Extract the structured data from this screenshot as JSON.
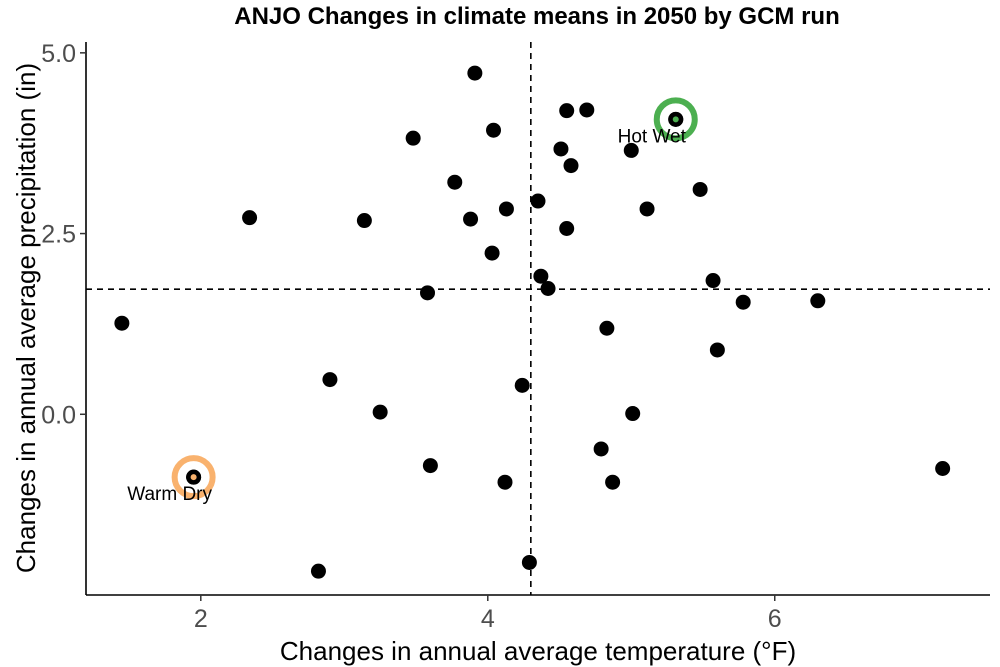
{
  "chart_data": {
    "type": "scatter",
    "title": "ANJO Changes in climate means in 2050 by GCM run",
    "xlabel": "Changes in annual average temperature (°F)",
    "ylabel": "Changes in annual average precipitation (in)",
    "xlim": [
      1.2,
      7.5
    ],
    "ylim": [
      -2.5,
      5.15
    ],
    "x_ticks": [
      2,
      4,
      6
    ],
    "x_tick_labels": [
      "2",
      "4",
      "6"
    ],
    "y_ticks": [
      0,
      2.5,
      5
    ],
    "y_tick_labels": [
      "0.0",
      "2.5",
      "5.0"
    ],
    "grid": false,
    "reference_lines": {
      "x": 4.3,
      "y": 1.73
    },
    "points": [
      {
        "x": 1.45,
        "y": 1.26
      },
      {
        "x": 1.95,
        "y": -0.87
      },
      {
        "x": 2.34,
        "y": 2.72
      },
      {
        "x": 2.82,
        "y": -2.17
      },
      {
        "x": 2.9,
        "y": 0.48
      },
      {
        "x": 3.14,
        "y": 2.68
      },
      {
        "x": 3.25,
        "y": 0.03
      },
      {
        "x": 3.48,
        "y": 3.82
      },
      {
        "x": 3.58,
        "y": 1.68
      },
      {
        "x": 3.6,
        "y": -0.71
      },
      {
        "x": 3.77,
        "y": 3.21
      },
      {
        "x": 3.88,
        "y": 2.7
      },
      {
        "x": 3.91,
        "y": 4.72
      },
      {
        "x": 4.03,
        "y": 2.23
      },
      {
        "x": 4.04,
        "y": 3.93
      },
      {
        "x": 4.12,
        "y": -0.94
      },
      {
        "x": 4.13,
        "y": 2.84
      },
      {
        "x": 4.24,
        "y": 0.4
      },
      {
        "x": 4.29,
        "y": -2.05
      },
      {
        "x": 4.35,
        "y": 2.95
      },
      {
        "x": 4.37,
        "y": 1.91
      },
      {
        "x": 4.42,
        "y": 1.74
      },
      {
        "x": 4.51,
        "y": 3.67
      },
      {
        "x": 4.55,
        "y": 2.57
      },
      {
        "x": 4.55,
        "y": 4.2
      },
      {
        "x": 4.58,
        "y": 3.44
      },
      {
        "x": 4.69,
        "y": 4.21
      },
      {
        "x": 4.79,
        "y": -0.48
      },
      {
        "x": 4.83,
        "y": 1.19
      },
      {
        "x": 4.87,
        "y": -0.94
      },
      {
        "x": 5.0,
        "y": 3.65
      },
      {
        "x": 5.01,
        "y": 0.01
      },
      {
        "x": 5.11,
        "y": 2.84
      },
      {
        "x": 5.31,
        "y": 4.08
      },
      {
        "x": 5.48,
        "y": 3.11
      },
      {
        "x": 5.57,
        "y": 1.85
      },
      {
        "x": 5.6,
        "y": 0.89
      },
      {
        "x": 5.78,
        "y": 1.55
      },
      {
        "x": 6.3,
        "y": 1.57
      },
      {
        "x": 7.17,
        "y": -0.75
      }
    ],
    "highlights": [
      {
        "label": "Warm Dry",
        "x": 1.95,
        "y": -0.87,
        "color": "#f9b26e",
        "label_side": "below-left"
      },
      {
        "label": "Hot Wet",
        "x": 5.31,
        "y": 4.08,
        "color": "#4caf50",
        "label_side": "below-left"
      }
    ]
  }
}
